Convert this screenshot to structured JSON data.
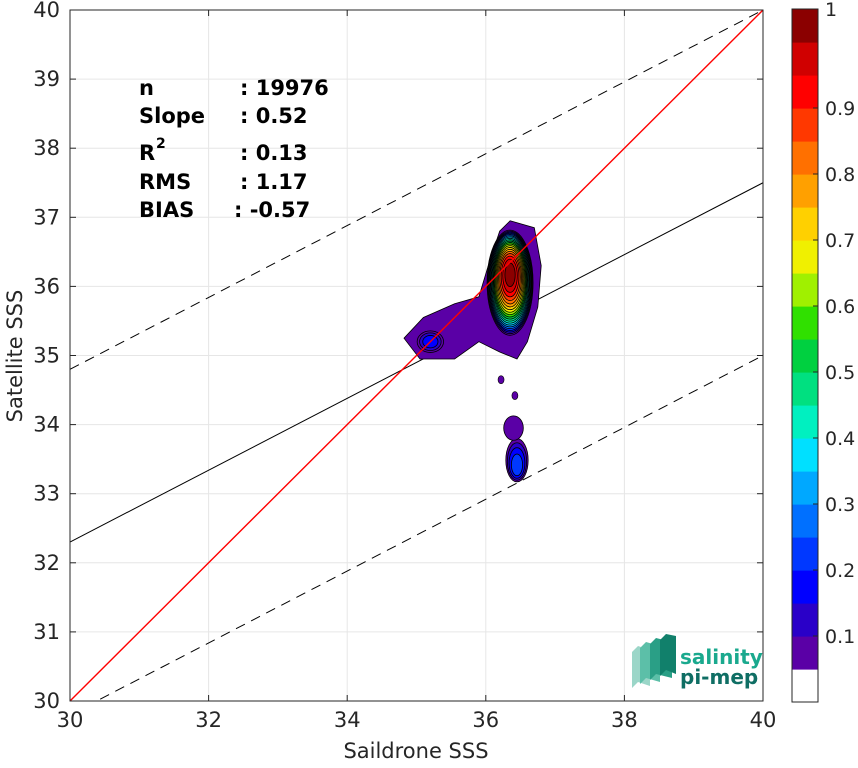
{
  "chart_data": {
    "type": "heatmap",
    "subtype": "density contour",
    "title": "",
    "xlabel": "Saildrone SSS",
    "ylabel": "Satellite SSS",
    "xlim": [
      30,
      40
    ],
    "ylim": [
      30,
      40
    ],
    "xticks": [
      "30",
      "32",
      "34",
      "36",
      "38",
      "40"
    ],
    "yticks": [
      "30",
      "31",
      "32",
      "33",
      "34",
      "35",
      "36",
      "37",
      "38",
      "39",
      "40"
    ],
    "grid": true,
    "stats": [
      {
        "label": "n",
        "value": ": 19976"
      },
      {
        "label": "Slope",
        "value": ": 0.52"
      },
      {
        "label": "R",
        "sup": "2",
        "value": ": 0.13"
      },
      {
        "label": "RMS",
        "value": ": 1.17"
      },
      {
        "label": "BIAS",
        "value": ": -0.57"
      }
    ],
    "lines": {
      "identity": {
        "slope": 1,
        "intercept": 0,
        "color": "#ff0000"
      },
      "regression": {
        "slope": 0.52,
        "intercept": 16.7,
        "color": "#000000"
      },
      "upper_bound": {
        "slope": 0.52,
        "intercept": 19.2,
        "style": "dashed"
      },
      "lower_bound": {
        "slope": 0.52,
        "intercept": 14.2,
        "style": "dashed"
      }
    },
    "contour_levels": [
      0.05,
      0.1,
      0.15,
      0.2,
      0.25,
      0.3,
      0.35,
      0.4,
      0.45,
      0.5,
      0.55,
      0.6,
      0.65,
      0.7,
      0.75,
      0.8,
      0.85,
      0.9,
      0.95,
      1.0
    ],
    "density_peaks": [
      {
        "x": 36.35,
        "y": 36.2,
        "value": 1.0
      },
      {
        "x": 35.2,
        "y": 35.2,
        "value": 0.15
      },
      {
        "x": 36.45,
        "y": 33.35,
        "value": 0.2
      },
      {
        "x": 36.4,
        "y": 33.95,
        "value": 0.05
      }
    ],
    "colorbar": {
      "ticks": [
        "0.1",
        "0.2",
        "0.3",
        "0.4",
        "0.5",
        "0.6",
        "0.7",
        "0.8",
        "0.9",
        "1"
      ],
      "colors": [
        "#ffffff",
        "#5a00a6",
        "#2a00c8",
        "#0000ff",
        "#0038ff",
        "#0070ff",
        "#00a8ff",
        "#00e0ff",
        "#00f0c0",
        "#00e080",
        "#00d040",
        "#30e000",
        "#a0f000",
        "#f0f000",
        "#ffd000",
        "#ffa000",
        "#ff7000",
        "#ff3800",
        "#ff0000",
        "#d00000",
        "#8b0000"
      ]
    }
  },
  "logo": {
    "line1": "salinity",
    "line2": "pi-mep"
  }
}
